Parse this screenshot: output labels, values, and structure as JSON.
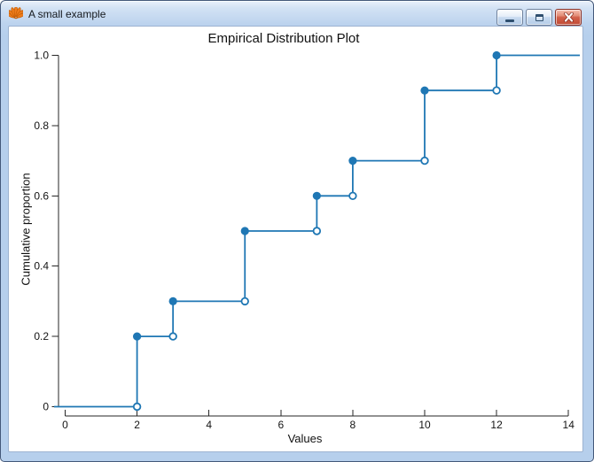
{
  "window": {
    "title": "A small example",
    "icon": "shell-icon",
    "buttons": [
      {
        "name": "minimize",
        "icon": "minimize-icon"
      },
      {
        "name": "maximize",
        "icon": "maximize-icon"
      },
      {
        "name": "close",
        "icon": "close-icon"
      }
    ]
  },
  "colors": {
    "series_blue": "#1f77b4",
    "titlebar_top": "#e9f1fb",
    "titlebar_bottom": "#b6cfec",
    "close_button_red": "#c04a35",
    "frame_border": "#44597a",
    "axis": "#262626"
  },
  "chart_data": {
    "type": "line",
    "subtype": "ecdf-step",
    "title": "Empirical Distribution Plot",
    "xlabel": "Values",
    "ylabel": "Cumulative proportion",
    "x_ticks": [
      0,
      2,
      4,
      6,
      8,
      10,
      12,
      14
    ],
    "x_tick_labels": [
      "0",
      "2",
      "4",
      "6",
      "8",
      "10",
      "12",
      "14"
    ],
    "y_ticks": [
      0,
      0.2,
      0.4,
      0.6,
      0.8,
      1.0
    ],
    "y_tick_labels": [
      "0",
      "0.2",
      "0.4",
      "0.6",
      "0.8",
      "1.0"
    ],
    "xlim": [
      -0.3,
      14.4
    ],
    "ylim": [
      0,
      1.08
    ],
    "grid": false,
    "legend": false,
    "line_color": "#1f77b4",
    "baseline": 0,
    "steps": [
      {
        "x": 2,
        "cum": 0.2
      },
      {
        "x": 3,
        "cum": 0.3
      },
      {
        "x": 5,
        "cum": 0.5
      },
      {
        "x": 7,
        "cum": 0.6
      },
      {
        "x": 8,
        "cum": 0.7
      },
      {
        "x": 10,
        "cum": 0.9
      },
      {
        "x": 12,
        "cum": 1.0
      }
    ],
    "marker_legend": {
      "filled_circle": "value included at step (left/top of riser)",
      "open_circle": "value excluded at step (right end of segment)"
    }
  }
}
